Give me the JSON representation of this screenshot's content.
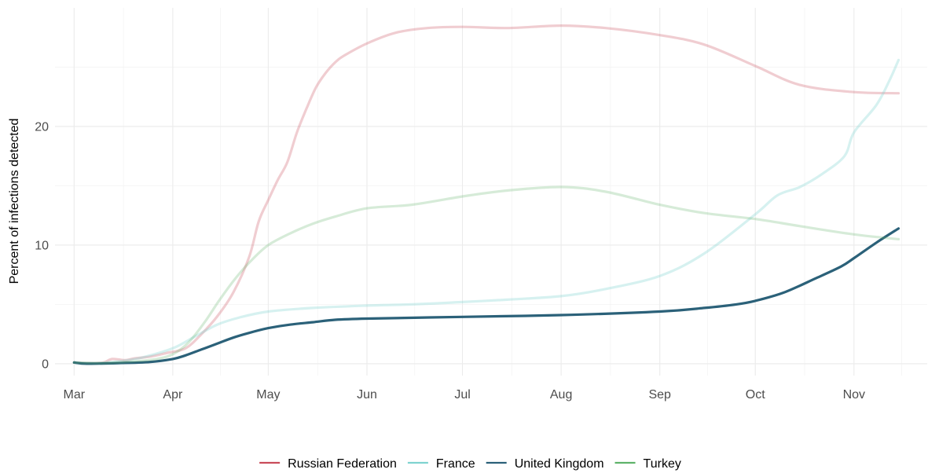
{
  "chart_data": {
    "type": "line",
    "title": "",
    "xlabel": "",
    "ylabel": "Percent of infections detected",
    "x_axis": {
      "start": "2020-02-24",
      "end": "2020-11-24",
      "ticks": [
        {
          "date": "2020-03-01",
          "label": "Mar"
        },
        {
          "date": "2020-04-01",
          "label": "Apr"
        },
        {
          "date": "2020-05-01",
          "label": "May"
        },
        {
          "date": "2020-06-01",
          "label": "Jun"
        },
        {
          "date": "2020-07-01",
          "label": "Jul"
        },
        {
          "date": "2020-08-01",
          "label": "Aug"
        },
        {
          "date": "2020-09-01",
          "label": "Sep"
        },
        {
          "date": "2020-10-01",
          "label": "Oct"
        },
        {
          "date": "2020-11-01",
          "label": "Nov"
        }
      ]
    },
    "y_axis": {
      "range": [
        -1.0,
        30.0
      ],
      "ticks": [
        {
          "value": 0,
          "label": "0"
        },
        {
          "value": 10,
          "label": "10"
        },
        {
          "value": 20,
          "label": "20"
        }
      ]
    },
    "grid": true,
    "legend_position": "bottom",
    "series": [
      {
        "name": "Russian Federation",
        "color": "#c94c5a",
        "opacity": 0.28,
        "points": [
          [
            "2020-03-01",
            0.1
          ],
          [
            "2020-03-05",
            0.05
          ],
          [
            "2020-03-10",
            0.1
          ],
          [
            "2020-03-13",
            0.4
          ],
          [
            "2020-03-17",
            0.3
          ],
          [
            "2020-03-20",
            0.45
          ],
          [
            "2020-03-25",
            0.6
          ],
          [
            "2020-03-30",
            0.9
          ],
          [
            "2020-04-05",
            1.3
          ],
          [
            "2020-04-10",
            2.5
          ],
          [
            "2020-04-15",
            4.0
          ],
          [
            "2020-04-20",
            6.0
          ],
          [
            "2020-04-25",
            9.0
          ],
          [
            "2020-04-28",
            12.0
          ],
          [
            "2020-05-01",
            13.8
          ],
          [
            "2020-05-04",
            15.5
          ],
          [
            "2020-05-07",
            17.0
          ],
          [
            "2020-05-10",
            19.5
          ],
          [
            "2020-05-13",
            21.5
          ],
          [
            "2020-05-16",
            23.3
          ],
          [
            "2020-05-19",
            24.5
          ],
          [
            "2020-05-22",
            25.4
          ],
          [
            "2020-05-25",
            26.0
          ],
          [
            "2020-06-01",
            27.0
          ],
          [
            "2020-06-10",
            27.9
          ],
          [
            "2020-06-20",
            28.3
          ],
          [
            "2020-07-01",
            28.4
          ],
          [
            "2020-07-15",
            28.3
          ],
          [
            "2020-08-01",
            28.5
          ],
          [
            "2020-08-15",
            28.3
          ],
          [
            "2020-09-01",
            27.7
          ],
          [
            "2020-09-15",
            26.9
          ],
          [
            "2020-10-01",
            25.1
          ],
          [
            "2020-10-15",
            23.5
          ],
          [
            "2020-11-01",
            22.9
          ],
          [
            "2020-11-15",
            22.8
          ]
        ]
      },
      {
        "name": "France",
        "color": "#7fd3d0",
        "opacity": 0.32,
        "points": [
          [
            "2020-03-01",
            0.1
          ],
          [
            "2020-03-08",
            0.05
          ],
          [
            "2020-03-15",
            0.2
          ],
          [
            "2020-03-22",
            0.5
          ],
          [
            "2020-04-01",
            1.3
          ],
          [
            "2020-04-08",
            2.3
          ],
          [
            "2020-04-15",
            3.3
          ],
          [
            "2020-04-22",
            3.9
          ],
          [
            "2020-05-01",
            4.4
          ],
          [
            "2020-05-15",
            4.7
          ],
          [
            "2020-06-01",
            4.9
          ],
          [
            "2020-06-15",
            5.0
          ],
          [
            "2020-07-01",
            5.2
          ],
          [
            "2020-07-15",
            5.4
          ],
          [
            "2020-08-01",
            5.7
          ],
          [
            "2020-08-15",
            6.3
          ],
          [
            "2020-09-01",
            7.4
          ],
          [
            "2020-09-15",
            9.3
          ],
          [
            "2020-10-01",
            12.6
          ],
          [
            "2020-10-08",
            14.2
          ],
          [
            "2020-10-15",
            14.9
          ],
          [
            "2020-10-22",
            16.0
          ],
          [
            "2020-10-29",
            17.5
          ],
          [
            "2020-11-01",
            19.5
          ],
          [
            "2020-11-08",
            21.8
          ],
          [
            "2020-11-12",
            23.8
          ],
          [
            "2020-11-15",
            25.6
          ]
        ]
      },
      {
        "name": "United Kingdom",
        "color": "#2b6179",
        "opacity": 1.0,
        "points": [
          [
            "2020-03-01",
            0.1
          ],
          [
            "2020-03-05",
            0.0
          ],
          [
            "2020-03-15",
            0.05
          ],
          [
            "2020-03-25",
            0.15
          ],
          [
            "2020-04-01",
            0.4
          ],
          [
            "2020-04-05",
            0.7
          ],
          [
            "2020-04-10",
            1.2
          ],
          [
            "2020-04-15",
            1.7
          ],
          [
            "2020-04-20",
            2.2
          ],
          [
            "2020-04-25",
            2.6
          ],
          [
            "2020-05-01",
            3.0
          ],
          [
            "2020-05-08",
            3.3
          ],
          [
            "2020-05-15",
            3.5
          ],
          [
            "2020-05-22",
            3.7
          ],
          [
            "2020-06-01",
            3.8
          ],
          [
            "2020-07-01",
            3.95
          ],
          [
            "2020-08-01",
            4.1
          ],
          [
            "2020-09-01",
            4.4
          ],
          [
            "2020-09-15",
            4.7
          ],
          [
            "2020-09-25",
            5.0
          ],
          [
            "2020-10-01",
            5.3
          ],
          [
            "2020-10-10",
            6.0
          ],
          [
            "2020-10-20",
            7.2
          ],
          [
            "2020-10-28",
            8.2
          ],
          [
            "2020-11-01",
            8.9
          ],
          [
            "2020-11-08",
            10.2
          ],
          [
            "2020-11-15",
            11.4
          ]
        ]
      },
      {
        "name": "Turkey",
        "color": "#5fb36a",
        "opacity": 0.26,
        "points": [
          [
            "2020-03-01",
            0.1
          ],
          [
            "2020-03-10",
            0.05
          ],
          [
            "2020-03-20",
            0.2
          ],
          [
            "2020-03-27",
            0.4
          ],
          [
            "2020-04-01",
            0.8
          ],
          [
            "2020-04-06",
            1.8
          ],
          [
            "2020-04-11",
            3.5
          ],
          [
            "2020-04-16",
            5.5
          ],
          [
            "2020-04-21",
            7.3
          ],
          [
            "2020-04-26",
            8.8
          ],
          [
            "2020-05-01",
            10.0
          ],
          [
            "2020-05-08",
            11.0
          ],
          [
            "2020-05-15",
            11.8
          ],
          [
            "2020-05-22",
            12.4
          ],
          [
            "2020-06-01",
            13.1
          ],
          [
            "2020-06-15",
            13.4
          ],
          [
            "2020-07-01",
            14.1
          ],
          [
            "2020-07-15",
            14.6
          ],
          [
            "2020-08-01",
            14.9
          ],
          [
            "2020-08-15",
            14.5
          ],
          [
            "2020-09-01",
            13.4
          ],
          [
            "2020-09-15",
            12.7
          ],
          [
            "2020-10-01",
            12.2
          ],
          [
            "2020-10-15",
            11.6
          ],
          [
            "2020-11-01",
            10.9
          ],
          [
            "2020-11-15",
            10.5
          ]
        ]
      }
    ]
  }
}
